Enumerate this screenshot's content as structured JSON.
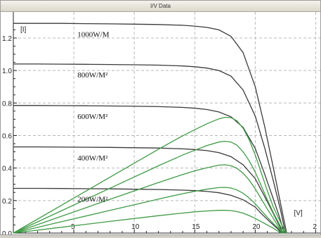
{
  "window": {
    "title": "I/V Data"
  },
  "colors": {
    "current_curve": "#3a3a3a",
    "power_curve": "#3f9b45",
    "grid": "#b8b8b8",
    "axis": "#222222"
  },
  "chart_data": {
    "type": "line",
    "title": "I/V Data",
    "xlabel": "[V]",
    "ylabel": "[I]",
    "xlim": [
      0,
      25
    ],
    "ylim": [
      0,
      1.36
    ],
    "x_ticks": [
      "5",
      "10",
      "15",
      "20",
      "2"
    ],
    "y_ticks": [
      "0.0",
      "0.2",
      "0.4",
      "0.6",
      "0.8",
      "1.0",
      "1.2"
    ],
    "grid": true,
    "annotations": [
      "1000W/M",
      "800W/M²",
      "600W/M²",
      "400W/M²",
      "200W/M²"
    ],
    "series": [
      {
        "kind": "current",
        "x": [
          0,
          2,
          4,
          6,
          8,
          10,
          12,
          14,
          15,
          16,
          17,
          18,
          19,
          20,
          20.8,
          21.5,
          22.1,
          22.6
        ],
        "y": [
          1.29,
          1.29,
          1.29,
          1.288,
          1.287,
          1.285,
          1.283,
          1.278,
          1.273,
          1.265,
          1.25,
          1.21,
          1.11,
          0.9,
          0.65,
          0.4,
          0.18,
          0.0
        ]
      },
      {
        "kind": "current",
        "x": [
          0,
          2,
          4,
          6,
          8,
          10,
          12,
          14,
          15,
          16,
          17,
          18,
          19,
          20,
          20.8,
          21.5,
          22.1,
          22.5
        ],
        "y": [
          1.04,
          1.04,
          1.039,
          1.038,
          1.037,
          1.035,
          1.033,
          1.028,
          1.023,
          1.015,
          1.0,
          0.965,
          0.88,
          0.72,
          0.52,
          0.32,
          0.14,
          0.0
        ]
      },
      {
        "kind": "current",
        "x": [
          0,
          2,
          4,
          6,
          8,
          10,
          12,
          14,
          15,
          16,
          17,
          18,
          19,
          20,
          20.7,
          21.4,
          22.0,
          22.4
        ],
        "y": [
          0.785,
          0.785,
          0.784,
          0.783,
          0.782,
          0.78,
          0.778,
          0.773,
          0.768,
          0.76,
          0.745,
          0.715,
          0.65,
          0.52,
          0.38,
          0.23,
          0.1,
          0.0
        ]
      },
      {
        "kind": "current",
        "x": [
          0,
          2,
          4,
          6,
          8,
          10,
          12,
          14,
          15,
          16,
          17,
          18,
          19,
          20,
          20.6,
          21.3,
          21.9,
          22.3
        ],
        "y": [
          0.53,
          0.53,
          0.529,
          0.528,
          0.527,
          0.525,
          0.523,
          0.518,
          0.514,
          0.507,
          0.495,
          0.47,
          0.42,
          0.335,
          0.25,
          0.15,
          0.06,
          0.0
        ]
      },
      {
        "kind": "current",
        "x": [
          0,
          2,
          4,
          6,
          8,
          10,
          12,
          14,
          15,
          16,
          17,
          18,
          19,
          20,
          20.5,
          21.2,
          21.8,
          22.2
        ],
        "y": [
          0.275,
          0.275,
          0.274,
          0.273,
          0.272,
          0.27,
          0.268,
          0.264,
          0.261,
          0.256,
          0.248,
          0.232,
          0.205,
          0.16,
          0.12,
          0.07,
          0.03,
          0.0
        ]
      },
      {
        "kind": "power",
        "x": [
          0,
          4,
          8,
          12,
          14,
          15,
          16,
          17,
          17.5,
          18,
          18.5,
          19,
          19.5,
          20,
          20.5,
          21,
          21.5,
          22.2,
          22.6
        ],
        "y": [
          0.0,
          0.172,
          0.344,
          0.516,
          0.598,
          0.636,
          0.672,
          0.703,
          0.712,
          0.71,
          0.69,
          0.645,
          0.575,
          0.48,
          0.37,
          0.26,
          0.16,
          0.05,
          0.0
        ]
      },
      {
        "kind": "power",
        "x": [
          0,
          4,
          8,
          12,
          14,
          15,
          16,
          17,
          17.5,
          18,
          18.5,
          19,
          19.5,
          20,
          20.5,
          21,
          21.5,
          22.1,
          22.5
        ],
        "y": [
          0.0,
          0.138,
          0.276,
          0.414,
          0.48,
          0.51,
          0.538,
          0.56,
          0.565,
          0.56,
          0.54,
          0.5,
          0.445,
          0.375,
          0.29,
          0.205,
          0.125,
          0.04,
          0.0
        ]
      },
      {
        "kind": "power",
        "x": [
          0,
          4,
          8,
          12,
          14,
          15,
          16,
          17,
          17.5,
          18,
          18.5,
          19,
          19.5,
          20,
          20.5,
          21,
          21.5,
          22.0,
          22.4
        ],
        "y": [
          0.0,
          0.104,
          0.208,
          0.311,
          0.36,
          0.383,
          0.402,
          0.418,
          0.42,
          0.414,
          0.398,
          0.368,
          0.326,
          0.272,
          0.21,
          0.148,
          0.09,
          0.03,
          0.0
        ]
      },
      {
        "kind": "power",
        "x": [
          0,
          4,
          8,
          12,
          14,
          15,
          16,
          17,
          17.5,
          18,
          18.5,
          19,
          19.5,
          20,
          20.5,
          21,
          21.5,
          21.9,
          22.3
        ],
        "y": [
          0.0,
          0.07,
          0.14,
          0.209,
          0.242,
          0.257,
          0.27,
          0.28,
          0.281,
          0.277,
          0.265,
          0.245,
          0.216,
          0.18,
          0.138,
          0.097,
          0.058,
          0.03,
          0.0
        ]
      },
      {
        "kind": "power",
        "x": [
          0,
          4,
          8,
          12,
          14,
          15,
          16,
          17,
          17.5,
          18,
          18.5,
          19,
          19.5,
          20,
          20.5,
          21,
          21.5,
          21.8,
          22.2
        ],
        "y": [
          0.0,
          0.036,
          0.072,
          0.107,
          0.123,
          0.131,
          0.136,
          0.14,
          0.14,
          0.138,
          0.132,
          0.122,
          0.108,
          0.09,
          0.07,
          0.05,
          0.03,
          0.015,
          0.0
        ]
      }
    ]
  }
}
